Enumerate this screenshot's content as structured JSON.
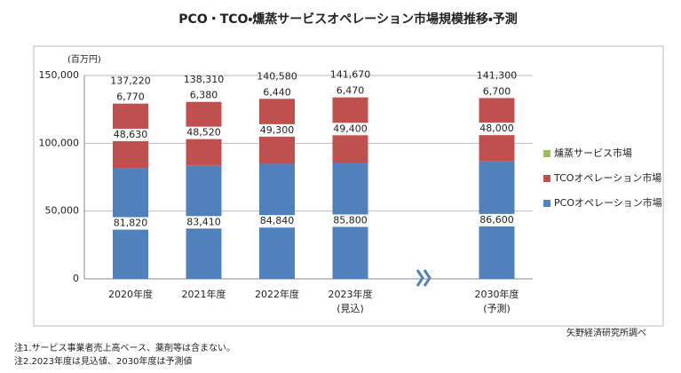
{
  "chart_data": {
    "type": "stacked-bar",
    "title": "PCO・TCO・燻蒸サービスオペレーション市場規模推移・予測",
    "y_unit": "(百万円)",
    "categories": [
      "2020年度",
      "2021年度",
      "2022年度",
      "2023年度",
      "2030年度"
    ],
    "category_sublabels": [
      null,
      null,
      null,
      "(見込)",
      "(予測)"
    ],
    "series": [
      {
        "name": "PCOオペレーション市場",
        "color": "#4f81bd",
        "values": [
          81820,
          83410,
          84840,
          85800,
          86600
        ],
        "value_labels": [
          "81,820",
          "83,410",
          "84,840",
          "85,800",
          "86,600"
        ]
      },
      {
        "name": "TCOオペレーション市場",
        "color": "#c0504d",
        "values": [
          48630,
          48520,
          49300,
          49400,
          48000
        ],
        "value_labels": [
          "48,630",
          "48,520",
          "49,300",
          "49,400",
          "48,000"
        ]
      },
      {
        "name": "燻蒸サービス市場",
        "color": "#9bbb59",
        "values": [
          6770,
          6380,
          6440,
          6470,
          6700
        ],
        "value_labels": [
          "6,770",
          "6,380",
          "6,440",
          "6,470",
          "6,700"
        ]
      }
    ],
    "totals": [
      137220,
      138310,
      140580,
      141670,
      141300
    ],
    "total_labels": [
      "137,220",
      "138,310",
      "140,580",
      "141,670",
      "141,300"
    ],
    "ylim": [
      0,
      150000
    ],
    "yticks": [
      0,
      {
        "value": 50000,
        "label": "50,000"
      },
      {
        "value": 100000,
        "label": "100,000"
      },
      {
        "value": 150000,
        "label": "150,000"
      }
    ],
    "grid": true,
    "legend": "right",
    "source": "矢野経済研究所調べ",
    "notes": [
      "注1.サービス事業者売上高ベース、薬剤等は含まない。",
      "注2.2023年度は見込値、2030年度は予測値"
    ]
  }
}
